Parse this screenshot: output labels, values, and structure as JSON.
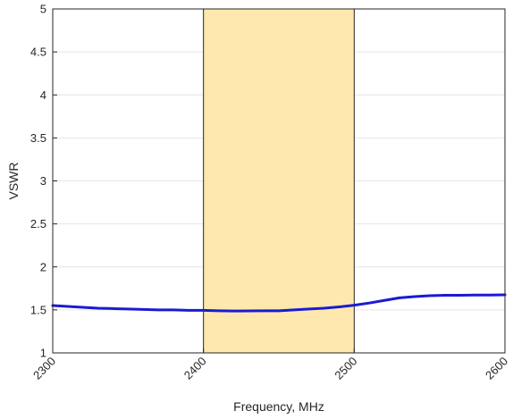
{
  "chart_data": {
    "type": "line",
    "title": "",
    "xlabel": "Frequency, MHz",
    "ylabel": "VSWR",
    "xlim": [
      2300,
      2600
    ],
    "ylim": [
      1,
      5
    ],
    "x_ticks": [
      "2300",
      "2400",
      "2500",
      "2600"
    ],
    "y_ticks": [
      "1",
      "1.5",
      "2",
      "2.5",
      "3",
      "3.5",
      "4",
      "4.5",
      "5"
    ],
    "grid": "horizontal",
    "highlight_band": {
      "x_start": 2400,
      "x_end": 2500,
      "color": "#ffe8ad"
    },
    "series": [
      {
        "color": "#1a1ad4",
        "x": [
          2300,
          2310,
          2320,
          2330,
          2340,
          2350,
          2360,
          2370,
          2380,
          2390,
          2400,
          2410,
          2420,
          2430,
          2440,
          2450,
          2460,
          2470,
          2480,
          2490,
          2500,
          2510,
          2520,
          2530,
          2540,
          2550,
          2560,
          2570,
          2580,
          2590,
          2600
        ],
        "y": [
          1.55,
          1.54,
          1.53,
          1.52,
          1.515,
          1.51,
          1.505,
          1.5,
          1.5,
          1.495,
          1.495,
          1.49,
          1.487,
          1.488,
          1.49,
          1.49,
          1.5,
          1.51,
          1.52,
          1.535,
          1.555,
          1.58,
          1.61,
          1.64,
          1.655,
          1.665,
          1.67,
          1.67,
          1.673,
          1.673,
          1.675
        ]
      }
    ]
  }
}
